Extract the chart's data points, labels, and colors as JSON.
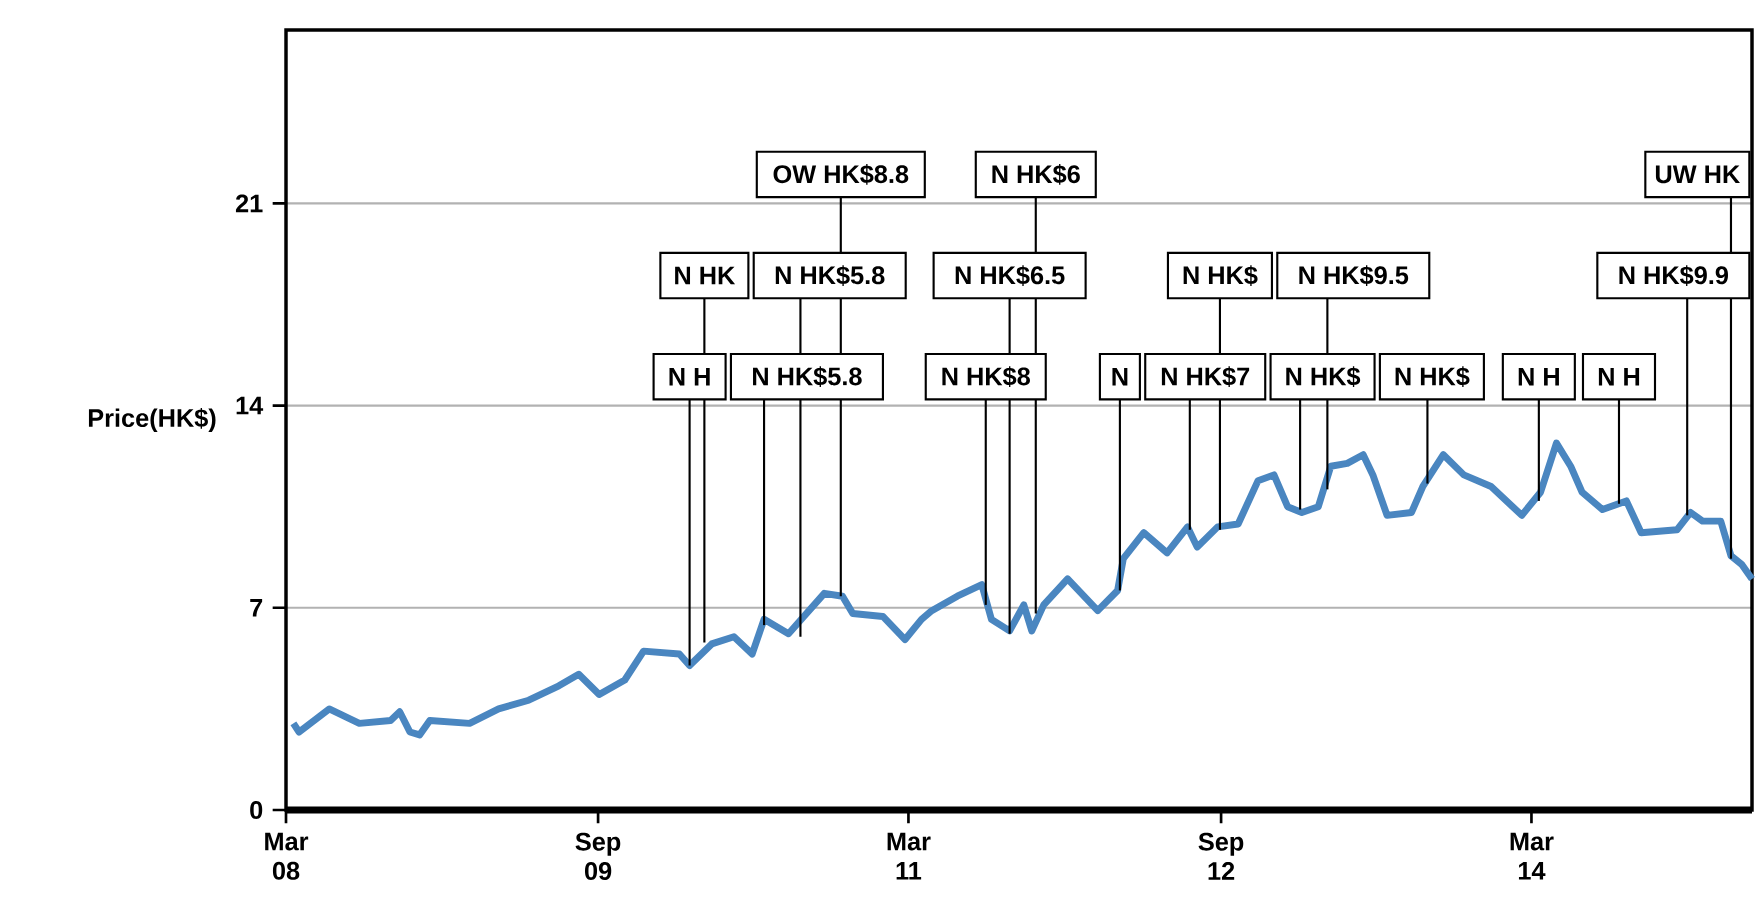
{
  "chart_data": {
    "type": "line",
    "ylabel": "Price(HK$)",
    "color": "#4a86c0",
    "grid": "y",
    "xlim": [
      "2008-03-01",
      "2015-03-24"
    ],
    "ylim": [
      0,
      27
    ],
    "xticks": [
      {
        "value": "2008-03",
        "label": "Mar 08"
      },
      {
        "value": "2009-09",
        "label": "Sep 09"
      },
      {
        "value": "2011-03",
        "label": "Mar 11"
      },
      {
        "value": "2012-09",
        "label": "Sep 12"
      },
      {
        "value": "2014-03",
        "label": "Mar 14"
      }
    ],
    "yticks": [
      0,
      7,
      14,
      21
    ],
    "x": [
      "2008-03-14",
      "2008-03-24",
      "2008-05-16",
      "2008-07-08",
      "2008-09-01",
      "2008-09-17",
      "2008-10-05",
      "2008-10-22",
      "2008-11-09",
      "2009-01-18",
      "2009-03-10",
      "2009-05-02",
      "2009-06-24",
      "2009-07-29",
      "2009-09-03",
      "2009-10-18",
      "2009-11-20",
      "2010-01-22",
      "2010-02-09",
      "2010-03-20",
      "2010-04-28",
      "2010-05-30",
      "2010-06-20",
      "2010-08-02",
      "2010-10-04",
      "2010-11-05",
      "2010-11-23",
      "2011-01-15",
      "2011-02-23",
      "2011-03-24",
      "2011-04-11",
      "2011-05-26",
      "2011-07-08",
      "2011-07-25",
      "2011-08-26",
      "2011-09-20",
      "2011-10-04",
      "2011-10-25",
      "2011-12-06",
      "2012-01-28",
      "2012-03-03",
      "2012-03-13",
      "2012-04-18",
      "2012-05-29",
      "2012-07-04",
      "2012-07-21",
      "2012-08-26",
      "2012-10-01",
      "2012-11-05",
      "2012-12-03",
      "2012-12-27",
      "2013-01-21",
      "2013-02-19",
      "2013-03-13",
      "2013-04-11",
      "2013-05-09",
      "2013-05-26",
      "2013-06-20",
      "2013-08-02",
      "2013-08-22",
      "2013-09-27",
      "2013-11-02",
      "2013-12-20",
      "2014-02-12",
      "2014-03-17",
      "2014-04-14",
      "2014-05-09",
      "2014-05-29",
      "2014-07-04",
      "2014-08-15",
      "2014-09-10",
      "2014-11-12",
      "2014-12-06",
      "2014-12-27",
      "2015-01-28",
      "2015-02-15",
      "2015-03-06",
      "2015-03-24"
    ],
    "values": [
      3.0,
      2.7,
      3.5,
      3.0,
      3.1,
      3.4,
      2.7,
      2.6,
      3.1,
      3.0,
      3.5,
      3.8,
      4.3,
      4.7,
      4.0,
      4.5,
      5.5,
      5.4,
      5.0,
      5.75,
      6.0,
      5.4,
      6.6,
      6.1,
      7.5,
      7.4,
      6.8,
      6.7,
      5.9,
      6.6,
      6.9,
      7.4,
      7.8,
      6.6,
      6.2,
      7.1,
      6.2,
      7.1,
      8.0,
      6.9,
      7.6,
      8.7,
      9.6,
      8.9,
      9.8,
      9.1,
      9.8,
      9.9,
      11.4,
      11.6,
      10.5,
      10.3,
      10.5,
      11.9,
      12.0,
      12.3,
      11.6,
      10.2,
      10.3,
      11.2,
      12.3,
      11.6,
      11.2,
      10.2,
      11.0,
      12.7,
      11.9,
      11.0,
      10.4,
      10.7,
      9.6,
      9.7,
      10.3,
      10.0,
      10.0,
      8.8,
      8.5,
      8.0
    ],
    "annotations": [
      {
        "text": "N H",
        "x": "2010-02-09",
        "y": 5.0
      },
      {
        "text": "N HK",
        "x": "2010-03-07",
        "y": 5.8
      },
      {
        "text": "N HK$5.8",
        "x": "2010-06-20",
        "y": 6.4
      },
      {
        "text": "N HK$5.8",
        "x": "2010-08-23",
        "y": 6.0
      },
      {
        "text": "OW HK$8.8",
        "x": "2010-11-02",
        "y": 7.4
      },
      {
        "text": "N HK$8",
        "x": "2011-07-15",
        "y": 7.1
      },
      {
        "text": "N HK$6.5",
        "x": "2011-08-26",
        "y": 6.1
      },
      {
        "text": "N HK$6",
        "x": "2011-10-11",
        "y": 6.8
      },
      {
        "text": "N",
        "x": "2012-03-07",
        "y": 7.6
      },
      {
        "text": "N HK$7",
        "x": "2012-07-08",
        "y": 9.7
      },
      {
        "text": "N HK$",
        "x": "2012-08-30",
        "y": 9.7
      },
      {
        "text": "N HK$",
        "x": "2013-01-18",
        "y": 10.4
      },
      {
        "text": "N HK$9.5",
        "x": "2013-03-07",
        "y": 11.1
      },
      {
        "text": "N HK$",
        "x": "2013-08-30",
        "y": 11.3
      },
      {
        "text": "N H",
        "x": "2014-03-14",
        "y": 10.7
      },
      {
        "text": "N H",
        "x": "2014-08-02",
        "y": 10.6
      },
      {
        "text": "N HK$9.9",
        "x": "2014-11-30",
        "y": 10.2
      },
      {
        "text": "UW HK",
        "x": "2015-02-15",
        "y": 8.7
      }
    ]
  }
}
